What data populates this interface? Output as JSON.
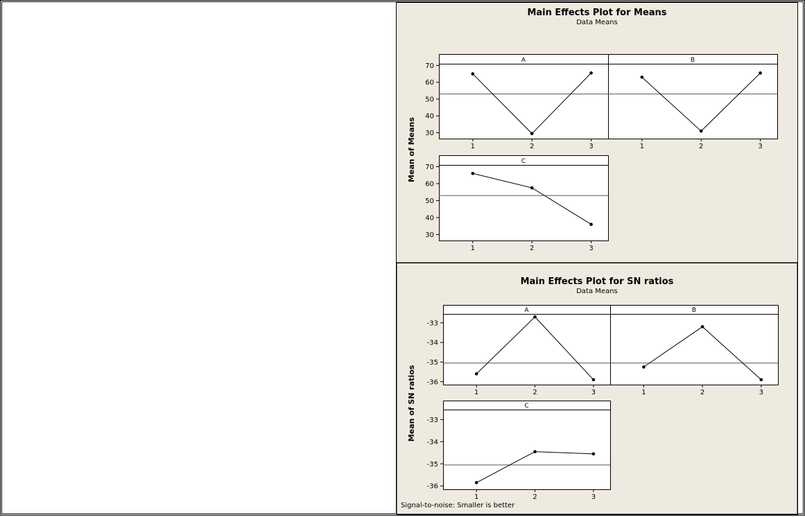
{
  "chart_data": [
    {
      "type": "line",
      "title": "Main Effects Plot for Means",
      "subtitle": "Data Means",
      "ylabel": "Mean of Means",
      "reference_line": 53,
      "yticks": [
        30,
        40,
        50,
        60,
        70
      ],
      "ylim": [
        26.5,
        71
      ],
      "xticks": [
        "1",
        "2",
        "3"
      ],
      "panels": [
        {
          "name": "A",
          "x": [
            1,
            2,
            3
          ],
          "values": [
            65,
            29.5,
            65.5
          ]
        },
        {
          "name": "B",
          "x": [
            1,
            2,
            3
          ],
          "values": [
            63,
            31,
            65.5
          ]
        },
        {
          "name": "C",
          "x": [
            1,
            2,
            3
          ],
          "values": [
            66,
            57.5,
            36
          ]
        }
      ]
    },
    {
      "type": "line",
      "title": "Main Effects Plot for SN ratios",
      "subtitle": "Data Means",
      "ylabel": "Mean of SN ratios",
      "reference_line": -35.05,
      "yticks": [
        -33,
        -34,
        -35,
        -36
      ],
      "ylim": [
        -36.15,
        -32.55
      ],
      "xticks": [
        "1",
        "2",
        "3"
      ],
      "panels": [
        {
          "name": "A",
          "x": [
            1,
            2,
            3
          ],
          "values": [
            -35.6,
            -32.7,
            -35.9
          ]
        },
        {
          "name": "B",
          "x": [
            1,
            2,
            3
          ],
          "values": [
            -35.25,
            -33.2,
            -35.9
          ]
        },
        {
          "name": "C",
          "x": [
            1,
            2,
            3
          ],
          "values": [
            -35.85,
            -34.45,
            -34.55
          ]
        }
      ],
      "footnote": "Signal-to-noise: Smaller is better"
    }
  ]
}
